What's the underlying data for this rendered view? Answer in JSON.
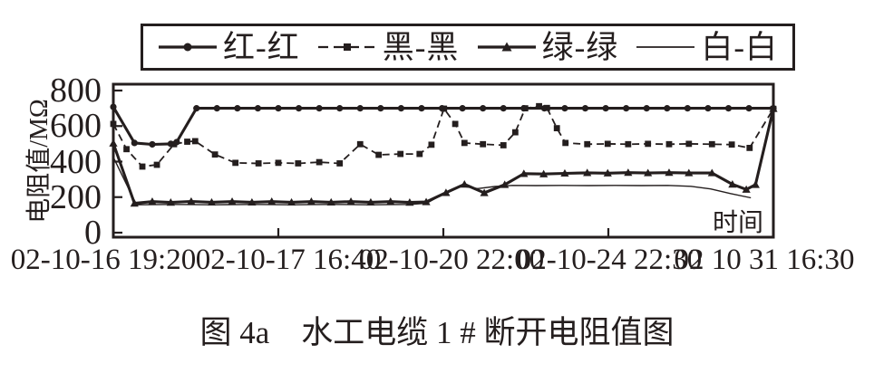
{
  "figure": {
    "caption": "图 4a　水工电缆 1 # 断开电阻值图",
    "background": "#ffffff",
    "ink_color": "#241e1e"
  },
  "legend": {
    "position": "top",
    "items": [
      {
        "label": "红-红",
        "name": "red-red",
        "marker": "circle",
        "line": "solid"
      },
      {
        "label": "黑-黑",
        "name": "black-black",
        "marker": "square",
        "line": "dashed"
      },
      {
        "label": "绿-绿",
        "name": "green-green",
        "marker": "triangle",
        "line": "solid"
      },
      {
        "label": "白-白",
        "name": "white-white",
        "marker": "none",
        "line": "thin"
      }
    ]
  },
  "chart_data": {
    "type": "line",
    "title": "图 4a　水工电缆 1 # 断开电阻值图",
    "ylabel": "电阻值/MΩ",
    "xlabel": "时间",
    "ylim": [
      0,
      800
    ],
    "yticks": [
      0,
      200,
      400,
      600,
      800
    ],
    "xticklabels": [
      "02-10-16 19:20",
      "02-10-17 16:40",
      "02-10-20 22:00",
      "02-10-24 22:30",
      "02 10 31 16:30"
    ],
    "xtick_centers_pct": [
      0,
      25,
      50,
      75,
      100
    ],
    "grid": false,
    "legend_position": "top",
    "y_unit": "MΩ",
    "x_unit": "percent of time axis",
    "series": [
      {
        "name": "红-红",
        "marker": "circle",
        "line": "solid",
        "width": 3.1,
        "points": [
          [
            0,
            708
          ],
          [
            3.2,
            505
          ],
          [
            5.9,
            497
          ],
          [
            8.7,
            500
          ],
          [
            9.6,
            510
          ],
          [
            12.6,
            700
          ],
          [
            15.7,
            700
          ],
          [
            18.8,
            700
          ],
          [
            21.9,
            700
          ],
          [
            25,
            700
          ],
          [
            28.1,
            700
          ],
          [
            31.2,
            700
          ],
          [
            34.3,
            700
          ],
          [
            37.4,
            700
          ],
          [
            40.5,
            700
          ],
          [
            43.6,
            700
          ],
          [
            46.7,
            700
          ],
          [
            49.8,
            700
          ],
          [
            52.9,
            700
          ],
          [
            56,
            700
          ],
          [
            59.1,
            700
          ],
          [
            62.2,
            700
          ],
          [
            65.3,
            700
          ],
          [
            68.4,
            700
          ],
          [
            71.5,
            700
          ],
          [
            74.6,
            700
          ],
          [
            77.7,
            700
          ],
          [
            80.8,
            700
          ],
          [
            83.9,
            700
          ],
          [
            87,
            700
          ],
          [
            90.1,
            700
          ],
          [
            93.2,
            700
          ],
          [
            96.3,
            700
          ],
          [
            100,
            700
          ]
        ]
      },
      {
        "name": "黑-黑",
        "marker": "square",
        "line": "dashed",
        "width": 1.8,
        "points": [
          [
            0,
            612
          ],
          [
            2,
            470
          ],
          [
            4.4,
            372
          ],
          [
            6.6,
            382
          ],
          [
            9.2,
            498
          ],
          [
            11.2,
            512
          ],
          [
            12.4,
            515
          ],
          [
            15.4,
            440
          ],
          [
            18.5,
            393
          ],
          [
            22,
            390
          ],
          [
            25,
            393
          ],
          [
            28,
            390
          ],
          [
            31.2,
            397
          ],
          [
            34.3,
            390
          ],
          [
            37.4,
            498
          ],
          [
            40.2,
            438
          ],
          [
            43.5,
            443
          ],
          [
            46.4,
            443
          ],
          [
            48.2,
            495
          ],
          [
            50.1,
            698
          ],
          [
            51.8,
            612
          ],
          [
            53.2,
            505
          ],
          [
            56,
            498
          ],
          [
            59.1,
            492
          ],
          [
            60.9,
            565
          ],
          [
            62.4,
            700
          ],
          [
            64.5,
            712
          ],
          [
            65.7,
            702
          ],
          [
            67.2,
            588
          ],
          [
            68.5,
            505
          ],
          [
            71.8,
            498
          ],
          [
            74.9,
            500
          ],
          [
            78,
            498
          ],
          [
            81,
            500
          ],
          [
            84.2,
            498
          ],
          [
            87.2,
            500
          ],
          [
            90.7,
            498
          ],
          [
            93.7,
            496
          ],
          [
            96.4,
            477
          ],
          [
            100,
            697
          ]
        ]
      },
      {
        "name": "绿-绿",
        "marker": "triangle",
        "line": "solid",
        "width": 3.1,
        "points": [
          [
            0,
            503
          ],
          [
            3.2,
            165
          ],
          [
            5.9,
            175
          ],
          [
            8.7,
            170
          ],
          [
            11.8,
            176
          ],
          [
            14.9,
            171
          ],
          [
            18,
            175
          ],
          [
            21,
            171
          ],
          [
            24,
            175
          ],
          [
            27,
            171
          ],
          [
            30,
            175
          ],
          [
            33,
            171
          ],
          [
            36,
            175
          ],
          [
            39,
            171
          ],
          [
            42,
            175
          ],
          [
            44.9,
            170
          ],
          [
            47.4,
            173
          ],
          [
            50.4,
            225
          ],
          [
            53.2,
            272
          ],
          [
            56.2,
            224
          ],
          [
            59.3,
            270
          ],
          [
            62.2,
            332
          ],
          [
            65.2,
            330
          ],
          [
            68.4,
            334
          ],
          [
            71.8,
            337
          ],
          [
            74.9,
            335
          ],
          [
            78,
            338
          ],
          [
            81,
            336
          ],
          [
            84.2,
            338
          ],
          [
            87.2,
            336
          ],
          [
            90.7,
            336
          ],
          [
            93.8,
            272
          ],
          [
            95.9,
            243
          ],
          [
            97.3,
            270
          ],
          [
            100,
            698
          ]
        ]
      },
      {
        "name": "白-白",
        "marker": "none",
        "line": "thin",
        "width": 1.4,
        "points": [
          [
            0,
            425
          ],
          [
            3.5,
            157
          ],
          [
            9,
            159
          ],
          [
            15,
            157
          ],
          [
            21,
            159
          ],
          [
            27,
            157
          ],
          [
            33,
            159
          ],
          [
            39,
            157
          ],
          [
            45,
            159
          ],
          [
            47.5,
            166
          ],
          [
            50.5,
            228
          ],
          [
            52.7,
            262
          ],
          [
            55.2,
            248
          ],
          [
            57.8,
            260
          ],
          [
            60.5,
            266
          ],
          [
            64,
            265
          ],
          [
            68,
            266
          ],
          [
            72,
            265
          ],
          [
            76,
            266
          ],
          [
            80,
            265
          ],
          [
            84,
            266
          ],
          [
            87.5,
            261
          ],
          [
            90.5,
            246
          ],
          [
            93.5,
            220
          ],
          [
            96.6,
            196
          ]
        ]
      }
    ]
  }
}
